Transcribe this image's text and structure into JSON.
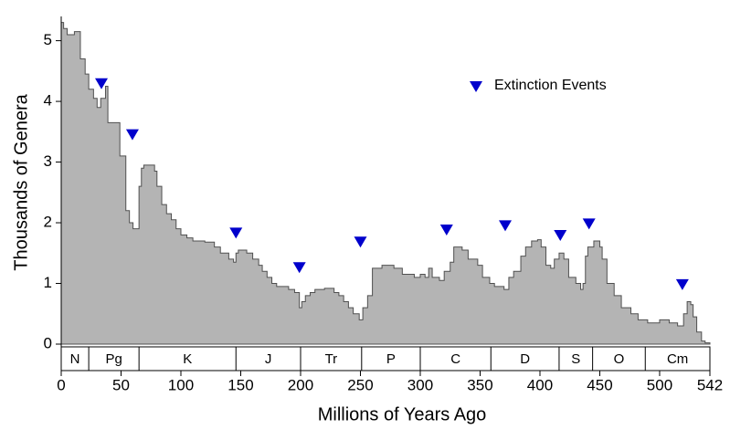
{
  "chart_data": {
    "type": "step-area",
    "xlabel": "Millions of Years Ago",
    "ylabel": "Thousands of Genera",
    "xlim": [
      0,
      542
    ],
    "ylim": [
      0,
      5.4
    ],
    "xticks": [
      0,
      50,
      100,
      150,
      200,
      250,
      300,
      350,
      400,
      450,
      500,
      542
    ],
    "yticks": [
      0,
      1,
      2,
      3,
      4,
      5
    ],
    "series": [
      {
        "color": "#b4b4b4",
        "x": [
          0,
          2,
          5,
          11,
          16,
          20,
          23,
          27,
          30,
          33,
          37,
          39,
          49,
          54,
          57,
          60,
          65,
          67,
          69,
          78,
          80,
          84,
          88,
          92,
          96,
          100,
          105,
          110,
          120,
          128,
          133,
          140,
          144,
          146,
          148,
          155,
          160,
          165,
          168,
          172,
          176,
          180,
          190,
          195,
          199,
          201,
          204,
          208,
          212,
          220,
          228,
          232,
          236,
          240,
          244,
          249,
          252,
          256,
          260,
          268,
          278,
          285,
          295,
          300,
          304,
          307,
          310,
          316,
          320,
          325,
          328,
          335,
          340,
          348,
          352,
          358,
          362,
          370,
          374,
          378,
          384,
          388,
          393,
          398,
          401,
          405,
          409,
          412,
          416,
          420,
          424,
          430,
          434,
          436,
          438,
          440,
          445,
          450,
          452,
          456,
          462,
          468,
          476,
          482,
          490,
          500,
          508,
          515,
          520,
          523,
          526,
          528,
          531,
          535,
          538
        ],
        "values": [
          5.3,
          5.2,
          5.1,
          5.15,
          4.7,
          4.45,
          4.2,
          4.05,
          3.9,
          4.05,
          4.25,
          3.65,
          3.1,
          2.2,
          2.0,
          1.9,
          2.6,
          2.9,
          2.95,
          2.85,
          2.6,
          2.3,
          2.15,
          2.05,
          1.9,
          1.8,
          1.75,
          1.7,
          1.68,
          1.6,
          1.5,
          1.4,
          1.35,
          1.5,
          1.55,
          1.5,
          1.4,
          1.3,
          1.2,
          1.1,
          1.0,
          0.95,
          0.9,
          0.85,
          0.6,
          0.7,
          0.8,
          0.85,
          0.9,
          0.92,
          0.85,
          0.8,
          0.7,
          0.6,
          0.5,
          0.4,
          0.6,
          0.8,
          1.25,
          1.3,
          1.25,
          1.15,
          1.1,
          1.15,
          1.1,
          1.25,
          1.1,
          1.05,
          1.2,
          1.35,
          1.6,
          1.55,
          1.4,
          1.3,
          1.1,
          1.0,
          0.95,
          0.9,
          1.1,
          1.2,
          1.45,
          1.6,
          1.7,
          1.72,
          1.6,
          1.3,
          1.25,
          1.4,
          1.5,
          1.4,
          1.1,
          1.0,
          0.9,
          1.0,
          1.45,
          1.6,
          1.7,
          1.6,
          1.4,
          1.0,
          0.8,
          0.6,
          0.5,
          0.4,
          0.35,
          0.4,
          0.35,
          0.3,
          0.5,
          0.7,
          0.65,
          0.45,
          0.2,
          0.05,
          0.02
        ]
      }
    ],
    "extinction_events": {
      "name": "Extinction Events",
      "color": "#0000cc",
      "x": [
        33.6,
        59.5,
        146,
        199,
        250,
        322,
        371,
        417,
        441,
        519
      ],
      "y": [
        4.29,
        3.45,
        1.83,
        1.26,
        1.68,
        1.88,
        1.95,
        1.79,
        1.98,
        0.98
      ]
    },
    "periods": [
      {
        "name": "N",
        "start": 0,
        "end": 23
      },
      {
        "name": "Pg",
        "start": 23,
        "end": 65
      },
      {
        "name": "K",
        "start": 65,
        "end": 146
      },
      {
        "name": "J",
        "start": 146,
        "end": 200
      },
      {
        "name": "Tr",
        "start": 200,
        "end": 251
      },
      {
        "name": "P",
        "start": 251,
        "end": 300
      },
      {
        "name": "C",
        "start": 300,
        "end": 359
      },
      {
        "name": "D",
        "start": 359,
        "end": 416
      },
      {
        "name": "S",
        "start": 416,
        "end": 444
      },
      {
        "name": "O",
        "start": 444,
        "end": 488
      },
      {
        "name": "Cm",
        "start": 488,
        "end": 542
      }
    ]
  }
}
